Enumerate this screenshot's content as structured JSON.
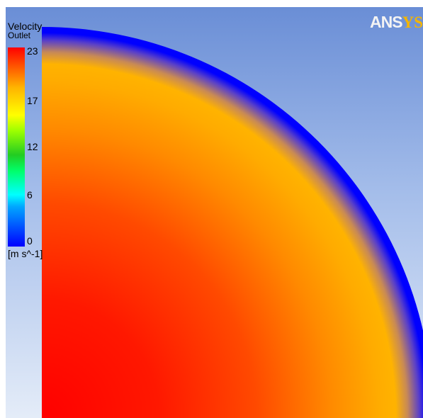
{
  "legend": {
    "title": "Velocity",
    "location": "Outlet",
    "ticks": [
      "23",
      "17",
      "12",
      "6",
      "0"
    ],
    "unit": "[m s^-1]",
    "colormap": [
      "#0000ff",
      "#00a6ff",
      "#00ffff",
      "#00ff6a",
      "#22cc22",
      "#9bff00",
      "#ffff00",
      "#ffb300",
      "#ff5a00",
      "#ff0000"
    ]
  },
  "logo": {
    "text_main": "ANS",
    "text_accent": "YS"
  },
  "colors": {
    "background_top": "#6a8ed6",
    "background_bottom": "#e4ecf8",
    "wall_velocity": "#0000ff",
    "core_velocity": "#ff0000"
  }
}
